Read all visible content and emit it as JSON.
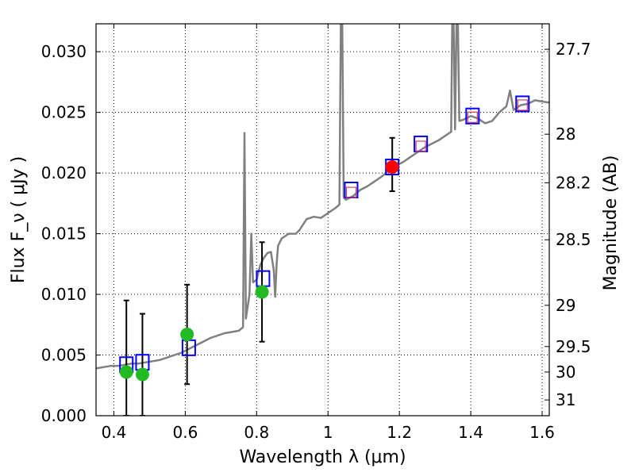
{
  "chart_data": {
    "type": "scatter",
    "xlabel": "Wavelength  λ (μm)",
    "ylabel": "Flux  F_ν  ( μJy )",
    "ylabel_right": "Magnitude (AB)",
    "xlim": [
      0.35,
      1.62
    ],
    "ylim": [
      0.0,
      0.0323
    ],
    "grid": true,
    "x_ticks": [
      {
        "value": 0.4,
        "label": "0.4"
      },
      {
        "value": 0.6,
        "label": "0.6"
      },
      {
        "value": 0.8,
        "label": "0.8"
      },
      {
        "value": 1.0,
        "label": "1"
      },
      {
        "value": 1.2,
        "label": "1.2"
      },
      {
        "value": 1.4,
        "label": "1.4"
      },
      {
        "value": 1.6,
        "label": "1.6"
      }
    ],
    "y_ticks": [
      {
        "value": 0.0,
        "label": "0.000"
      },
      {
        "value": 0.005,
        "label": "0.005"
      },
      {
        "value": 0.01,
        "label": "0.010"
      },
      {
        "value": 0.015,
        "label": "0.015"
      },
      {
        "value": 0.02,
        "label": "0.020"
      },
      {
        "value": 0.025,
        "label": "0.025"
      },
      {
        "value": 0.03,
        "label": "0.030"
      }
    ],
    "y_ticks_right": [
      {
        "flux": 0.0302,
        "label": "27.7"
      },
      {
        "flux": 0.0232,
        "label": "28"
      },
      {
        "flux": 0.0192,
        "label": "28.2"
      },
      {
        "flux": 0.0145,
        "label": "28.5"
      },
      {
        "flux": 0.0091,
        "label": "29"
      },
      {
        "flux": 0.0057,
        "label": "29.5"
      },
      {
        "flux": 0.0036,
        "label": "30"
      },
      {
        "flux": 0.0013,
        "label": "31"
      }
    ],
    "series": [
      {
        "kind": "line",
        "color": "#808080",
        "points": [
          [
            0.35,
            0.0039
          ],
          [
            0.37,
            0.004
          ],
          [
            0.39,
            0.0041
          ],
          [
            0.41,
            0.0041
          ],
          [
            0.43,
            0.0042
          ],
          [
            0.45,
            0.0043
          ],
          [
            0.47,
            0.0043
          ],
          [
            0.49,
            0.0044
          ],
          [
            0.51,
            0.0045
          ],
          [
            0.53,
            0.0046
          ],
          [
            0.55,
            0.0048
          ],
          [
            0.57,
            0.005
          ],
          [
            0.59,
            0.0052
          ],
          [
            0.61,
            0.0055
          ],
          [
            0.63,
            0.0058
          ],
          [
            0.65,
            0.0061
          ],
          [
            0.67,
            0.0064
          ],
          [
            0.69,
            0.0066
          ],
          [
            0.71,
            0.0068
          ],
          [
            0.73,
            0.0069
          ],
          [
            0.75,
            0.007
          ],
          [
            0.762,
            0.0073
          ],
          [
            0.766,
            0.0233
          ],
          [
            0.77,
            0.008
          ],
          [
            0.78,
            0.01
          ],
          [
            0.785,
            0.015
          ],
          [
            0.79,
            0.011
          ],
          [
            0.8,
            0.0112
          ],
          [
            0.81,
            0.0124
          ],
          [
            0.82,
            0.013
          ],
          [
            0.83,
            0.0134
          ],
          [
            0.84,
            0.0135
          ],
          [
            0.848,
            0.012
          ],
          [
            0.852,
            0.0098
          ],
          [
            0.856,
            0.0125
          ],
          [
            0.86,
            0.014
          ],
          [
            0.87,
            0.0146
          ],
          [
            0.88,
            0.0148
          ],
          [
            0.89,
            0.015
          ],
          [
            0.9,
            0.015
          ],
          [
            0.91,
            0.015
          ],
          [
            0.92,
            0.0153
          ],
          [
            0.94,
            0.0162
          ],
          [
            0.96,
            0.0164
          ],
          [
            0.98,
            0.0163
          ],
          [
            1.0,
            0.0167
          ],
          [
            1.02,
            0.0171
          ],
          [
            1.032,
            0.0174
          ],
          [
            1.036,
            0.0323
          ],
          [
            1.04,
            0.0323
          ],
          [
            1.044,
            0.018
          ],
          [
            1.05,
            0.0178
          ],
          [
            1.07,
            0.0181
          ],
          [
            1.09,
            0.0186
          ],
          [
            1.11,
            0.0189
          ],
          [
            1.13,
            0.0193
          ],
          [
            1.15,
            0.0197
          ],
          [
            1.17,
            0.0202
          ],
          [
            1.19,
            0.0206
          ],
          [
            1.21,
            0.0209
          ],
          [
            1.23,
            0.0213
          ],
          [
            1.25,
            0.0217
          ],
          [
            1.27,
            0.0221
          ],
          [
            1.29,
            0.0224
          ],
          [
            1.31,
            0.0227
          ],
          [
            1.33,
            0.0231
          ],
          [
            1.345,
            0.0234
          ],
          [
            1.348,
            0.0323
          ],
          [
            1.352,
            0.0323
          ],
          [
            1.356,
            0.0236
          ],
          [
            1.36,
            0.0323
          ],
          [
            1.364,
            0.0323
          ],
          [
            1.368,
            0.0243
          ],
          [
            1.38,
            0.0244
          ],
          [
            1.4,
            0.0247
          ],
          [
            1.42,
            0.0245
          ],
          [
            1.44,
            0.0241
          ],
          [
            1.46,
            0.0243
          ],
          [
            1.48,
            0.025
          ],
          [
            1.5,
            0.0255
          ],
          [
            1.51,
            0.0268
          ],
          [
            1.52,
            0.0252
          ],
          [
            1.54,
            0.0256
          ],
          [
            1.56,
            0.0257
          ],
          [
            1.58,
            0.026
          ],
          [
            1.6,
            0.0259
          ],
          [
            1.62,
            0.0258
          ]
        ]
      },
      {
        "kind": "markers",
        "name": "model_squares",
        "marker": "square",
        "stroke": "#0000ff",
        "fill": "none",
        "points": [
          [
            0.435,
            0.0042
          ],
          [
            0.48,
            0.0044
          ],
          [
            0.61,
            0.0056
          ],
          [
            0.818,
            0.0113
          ],
          [
            1.065,
            0.0186
          ],
          [
            1.18,
            0.0205
          ],
          [
            1.26,
            0.0224
          ],
          [
            1.405,
            0.0247
          ],
          [
            1.545,
            0.0257
          ]
        ]
      },
      {
        "kind": "markers",
        "name": "inner_squares",
        "marker": "square-small",
        "stroke": "#d94050",
        "fill": "none",
        "points": [
          [
            1.065,
            0.0184
          ],
          [
            1.26,
            0.0222
          ],
          [
            1.405,
            0.0246
          ],
          [
            1.545,
            0.0256
          ]
        ]
      },
      {
        "kind": "markers",
        "name": "green_points",
        "marker": "circle",
        "fill": "#22bb22",
        "points": [
          [
            0.435,
            0.0036
          ],
          [
            0.48,
            0.0034
          ],
          [
            0.605,
            0.0067
          ],
          [
            0.815,
            0.0102
          ]
        ],
        "yerr": [
          [
            0.0,
            0.0095
          ],
          [
            0.0,
            0.0084
          ],
          [
            0.0026,
            0.0108
          ],
          [
            0.0061,
            0.0143
          ]
        ]
      },
      {
        "kind": "markers",
        "name": "red_points",
        "marker": "circle",
        "fill": "#ff0000",
        "points": [
          [
            1.18,
            0.0205
          ]
        ],
        "yerr": [
          [
            0.0185,
            0.0229
          ]
        ]
      }
    ]
  }
}
